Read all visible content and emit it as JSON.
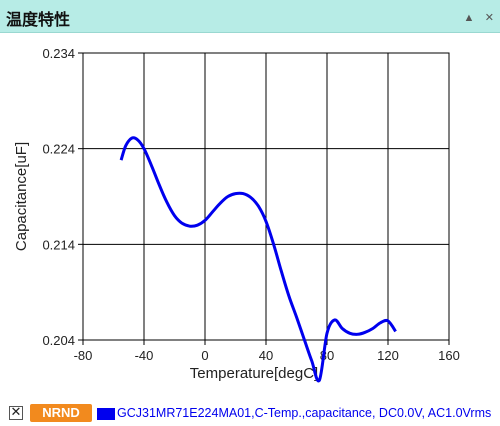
{
  "header": {
    "title": "温度特性",
    "collapse_icon": "triangle-up-icon",
    "close_icon": "close-icon"
  },
  "legend": {
    "checkbox_glyph": "✕",
    "badge_label": "NRND",
    "series_label": "GCJ31MR71E224MA01,C-Temp.,capacitance, DC0.0V, AC1.0Vrms",
    "badge_color": "#f28a1e",
    "series_color": "#0000ee"
  },
  "chart_data": {
    "type": "line",
    "xlabel": "Temperature[degC]",
    "ylabel": "Capacitance[uF]",
    "xlim": [
      -80,
      160
    ],
    "ylim": [
      0.204,
      0.234
    ],
    "x_ticks": [
      -80,
      -40,
      0,
      40,
      80,
      120,
      160
    ],
    "x_tick_labels": [
      "-80",
      "-40",
      "0",
      "40",
      "80",
      "120",
      "160"
    ],
    "y_ticks": [
      0.204,
      0.214,
      0.224,
      0.234
    ],
    "y_tick_labels": [
      "0.204",
      "0.214",
      "0.224",
      "0.234"
    ],
    "grid": true,
    "series": [
      {
        "name": "GCJ31MR71E224MA01,C-Temp.,capacitance, DC0.0V, AC1.0Vrms",
        "color": "#0000ee",
        "x": [
          -55,
          -52,
          -48,
          -44,
          -40,
          -35,
          -30,
          -25,
          -20,
          -15,
          -10,
          -5,
          0,
          5,
          10,
          15,
          20,
          25,
          30,
          35,
          40,
          45,
          50,
          55,
          60,
          65,
          70,
          75,
          80,
          85,
          90,
          95,
          100,
          105,
          110,
          115,
          120,
          125
        ],
        "y": [
          0.2228,
          0.2243,
          0.2251,
          0.2249,
          0.224,
          0.2222,
          0.2202,
          0.2184,
          0.217,
          0.2162,
          0.2159,
          0.216,
          0.2165,
          0.2174,
          0.2183,
          0.219,
          0.2193,
          0.2193,
          0.2189,
          0.218,
          0.2164,
          0.214,
          0.2112,
          0.2086,
          0.2064,
          0.2041,
          0.2018,
          0.1998,
          0.2047,
          0.2061,
          0.2052,
          0.2047,
          0.2046,
          0.2048,
          0.2052,
          0.2058,
          0.206,
          0.2049
        ]
      }
    ]
  }
}
